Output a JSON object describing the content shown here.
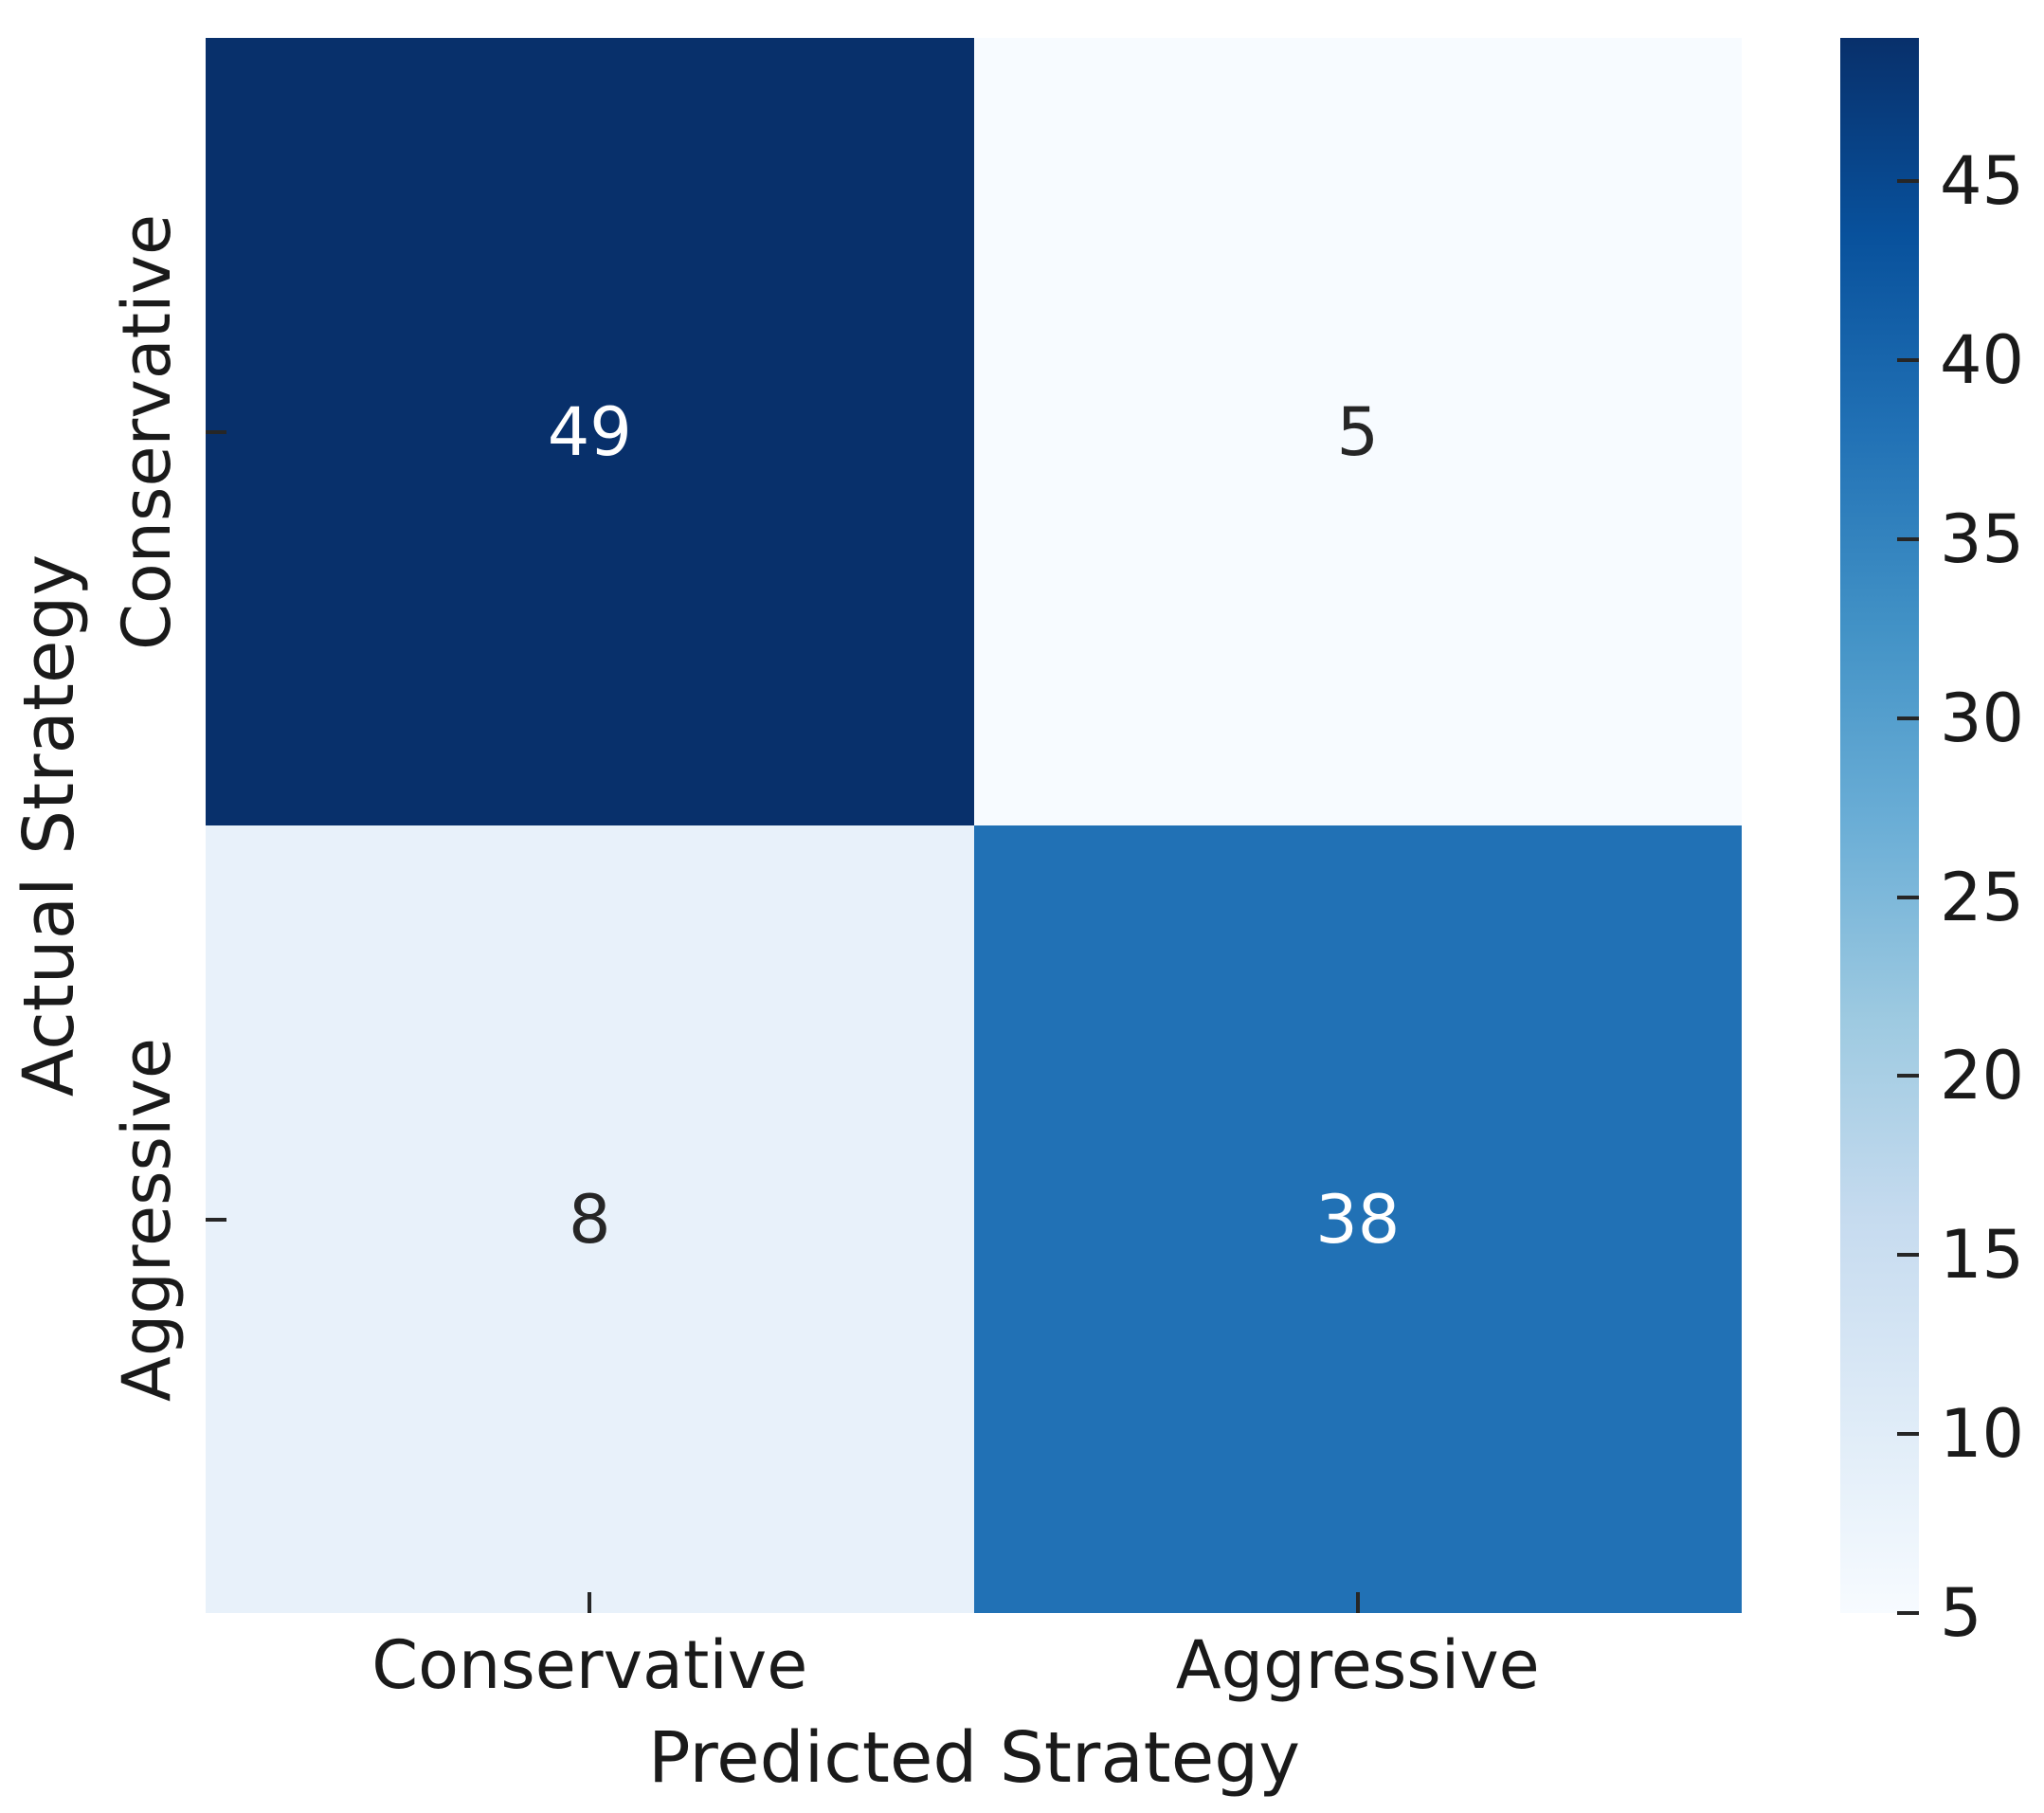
{
  "chart_data": {
    "type": "heatmap",
    "title": "",
    "xlabel": "Predicted Strategy",
    "ylabel": "Actual Strategy",
    "x_tick_labels": [
      "Conservative",
      "Aggressive"
    ],
    "y_tick_labels": [
      "Conservative",
      "Aggressive"
    ],
    "matrix": [
      [
        49,
        5
      ],
      [
        8,
        38
      ]
    ],
    "vmin": 5,
    "vmax": 49,
    "colormap": "Blues",
    "grid": false,
    "legend_position": "right-colorbar",
    "colorbar_ticks": [
      45,
      40,
      35,
      30,
      25,
      20,
      15,
      10,
      5
    ],
    "cell_colors": [
      [
        "#08306b",
        "#f7fbff"
      ],
      [
        "#e8f1fa",
        "#2171b5"
      ]
    ],
    "cell_text_colors": [
      [
        "#ffffff",
        "#262626"
      ],
      [
        "#262626",
        "#ffffff"
      ]
    ],
    "colormap_stops": [
      "#f7fbff",
      "#deebf7",
      "#c6dbef",
      "#9ecae1",
      "#6baed6",
      "#4292c6",
      "#2171b5",
      "#08519c",
      "#08306b"
    ]
  },
  "colors": {
    "background": "#ffffff",
    "text": "#1a1a1a",
    "tick": "#262626"
  }
}
